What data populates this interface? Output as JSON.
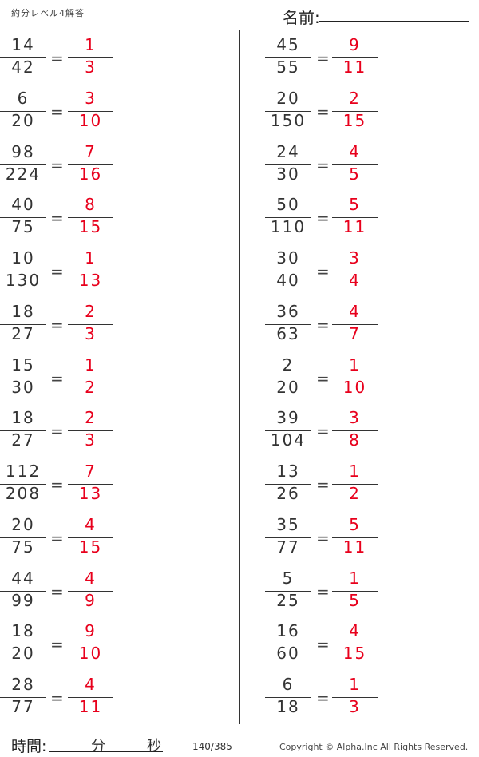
{
  "header": {
    "title": "約分レベル4解答",
    "name_label": "名前:"
  },
  "colors": {
    "answer": "#e8001c",
    "text": "#333333"
  },
  "problems": {
    "left": [
      {
        "num": "14",
        "den": "42",
        "ans_num": "1",
        "ans_den": "3"
      },
      {
        "num": "6",
        "den": "20",
        "ans_num": "3",
        "ans_den": "10"
      },
      {
        "num": "98",
        "den": "224",
        "ans_num": "7",
        "ans_den": "16"
      },
      {
        "num": "40",
        "den": "75",
        "ans_num": "8",
        "ans_den": "15"
      },
      {
        "num": "10",
        "den": "130",
        "ans_num": "1",
        "ans_den": "13"
      },
      {
        "num": "18",
        "den": "27",
        "ans_num": "2",
        "ans_den": "3"
      },
      {
        "num": "15",
        "den": "30",
        "ans_num": "1",
        "ans_den": "2"
      },
      {
        "num": "18",
        "den": "27",
        "ans_num": "2",
        "ans_den": "3"
      },
      {
        "num": "112",
        "den": "208",
        "ans_num": "7",
        "ans_den": "13"
      },
      {
        "num": "20",
        "den": "75",
        "ans_num": "4",
        "ans_den": "15"
      },
      {
        "num": "44",
        "den": "99",
        "ans_num": "4",
        "ans_den": "9"
      },
      {
        "num": "18",
        "den": "20",
        "ans_num": "9",
        "ans_den": "10"
      },
      {
        "num": "28",
        "den": "77",
        "ans_num": "4",
        "ans_den": "11"
      }
    ],
    "right": [
      {
        "num": "45",
        "den": "55",
        "ans_num": "9",
        "ans_den": "11"
      },
      {
        "num": "20",
        "den": "150",
        "ans_num": "2",
        "ans_den": "15"
      },
      {
        "num": "24",
        "den": "30",
        "ans_num": "4",
        "ans_den": "5"
      },
      {
        "num": "50",
        "den": "110",
        "ans_num": "5",
        "ans_den": "11"
      },
      {
        "num": "30",
        "den": "40",
        "ans_num": "3",
        "ans_den": "4"
      },
      {
        "num": "36",
        "den": "63",
        "ans_num": "4",
        "ans_den": "7"
      },
      {
        "num": "2",
        "den": "20",
        "ans_num": "1",
        "ans_den": "10"
      },
      {
        "num": "39",
        "den": "104",
        "ans_num": "3",
        "ans_den": "8"
      },
      {
        "num": "13",
        "den": "26",
        "ans_num": "1",
        "ans_den": "2"
      },
      {
        "num": "35",
        "den": "77",
        "ans_num": "5",
        "ans_den": "11"
      },
      {
        "num": "5",
        "den": "25",
        "ans_num": "1",
        "ans_den": "5"
      },
      {
        "num": "16",
        "den": "60",
        "ans_num": "4",
        "ans_den": "15"
      },
      {
        "num": "6",
        "den": "18",
        "ans_num": "1",
        "ans_den": "3"
      }
    ],
    "equals": "="
  },
  "footer": {
    "time_label": "時間:",
    "minutes": "分",
    "seconds": "秒",
    "page": "140/385",
    "copyright": "Copyright ©  Alpha.Inc All Rights Reserved."
  }
}
